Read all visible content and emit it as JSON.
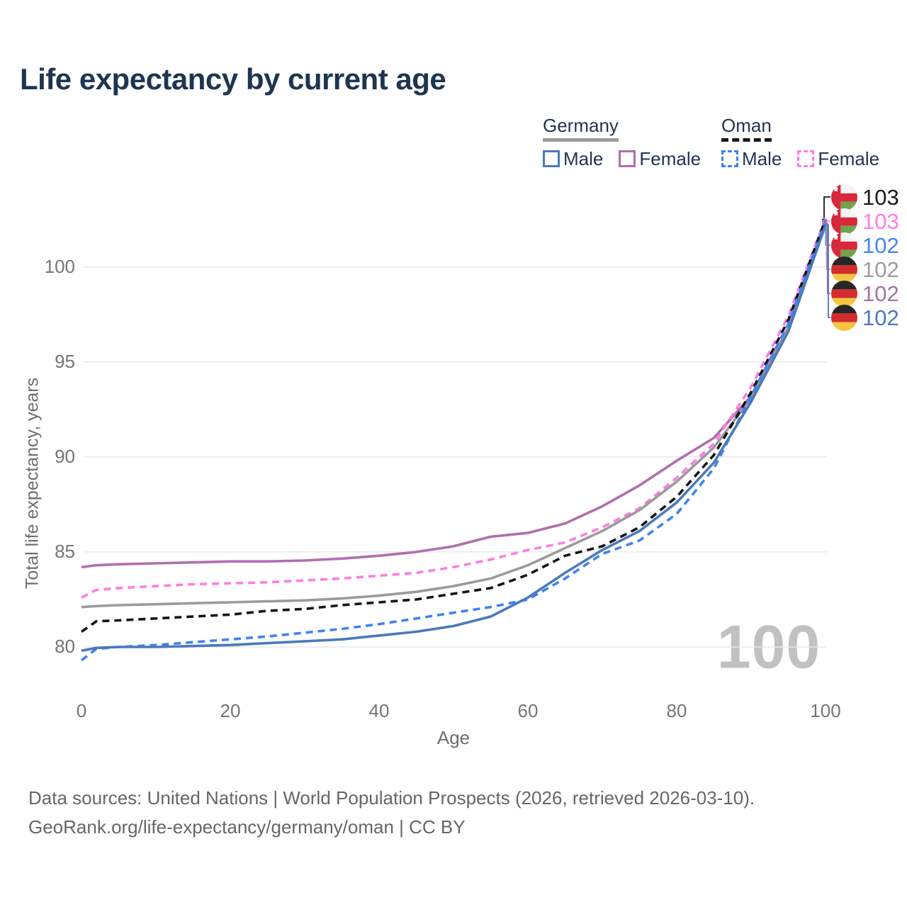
{
  "title": "Life expectancy by current age",
  "legend": {
    "groups": [
      {
        "name": "Germany",
        "underline_style": "solid",
        "underline_color": "#9c9c9c",
        "items": [
          {
            "label": "Male",
            "color": "#4b79bb",
            "dash": "solid"
          },
          {
            "label": "Female",
            "color": "#b06fae",
            "dash": "solid"
          }
        ]
      },
      {
        "name": "Oman",
        "underline_style": "dashed",
        "underline_color": "#1a1a1a",
        "items": [
          {
            "label": "Male",
            "color": "#3f82f2",
            "dash": "dashed"
          },
          {
            "label": "Female",
            "color": "#ff7de1",
            "dash": "dashed"
          }
        ]
      }
    ]
  },
  "axes": {
    "y_title": "Total life expectancy, years",
    "x_title": "Age",
    "y_ticks": [
      80,
      85,
      90,
      95,
      100
    ],
    "x_ticks": [
      0,
      20,
      40,
      60,
      80,
      100
    ],
    "grid_color": "#e9e9e9"
  },
  "chart_data": {
    "type": "line",
    "title": "Life expectancy by current age",
    "xlabel": "Age",
    "ylabel": "Total life expectancy, years",
    "xlim": [
      0,
      100
    ],
    "ylim": [
      78.5,
      103.5
    ],
    "grid": "horizontal",
    "x": [
      0,
      2,
      5,
      10,
      15,
      20,
      25,
      30,
      35,
      40,
      45,
      50,
      55,
      60,
      65,
      70,
      75,
      80,
      85,
      90,
      95,
      100
    ],
    "series": [
      {
        "name": "Germany Female",
        "color": "#b06fae",
        "dash": "solid",
        "values": [
          84.2,
          84.3,
          84.35,
          84.4,
          84.45,
          84.5,
          84.5,
          84.55,
          84.65,
          84.8,
          85.0,
          85.3,
          85.8,
          86.0,
          86.5,
          87.4,
          88.5,
          89.8,
          91.0,
          93.2,
          96.8,
          102.3
        ]
      },
      {
        "name": "Oman Female",
        "color": "#ff7de1",
        "dash": "dashed",
        "values": [
          82.6,
          83.0,
          83.1,
          83.2,
          83.3,
          83.35,
          83.4,
          83.5,
          83.6,
          83.75,
          83.9,
          84.2,
          84.6,
          85.1,
          85.5,
          86.3,
          87.3,
          88.9,
          90.7,
          93.7,
          97.4,
          102.55
        ]
      },
      {
        "name": "Germany Total",
        "color": "#9b9b9b",
        "dash": "solid",
        "values": [
          82.1,
          82.15,
          82.2,
          82.25,
          82.3,
          82.35,
          82.4,
          82.45,
          82.55,
          82.7,
          82.9,
          83.2,
          83.6,
          84.3,
          85.2,
          86.1,
          87.2,
          88.7,
          90.5,
          93.1,
          96.7,
          102.3
        ]
      },
      {
        "name": "Oman Total",
        "color": "#151515",
        "dash": "dashed",
        "values": [
          80.8,
          81.35,
          81.4,
          81.5,
          81.6,
          81.7,
          81.9,
          82.0,
          82.2,
          82.35,
          82.5,
          82.8,
          83.1,
          83.8,
          84.8,
          85.3,
          86.3,
          87.9,
          90.1,
          93.4,
          97.2,
          102.5
        ]
      },
      {
        "name": "Oman Male",
        "color": "#3f82f2",
        "dash": "dashed",
        "values": [
          79.3,
          79.9,
          80.0,
          80.1,
          80.25,
          80.4,
          80.55,
          80.75,
          80.95,
          81.2,
          81.5,
          81.8,
          82.1,
          82.5,
          83.6,
          84.9,
          85.6,
          87.0,
          89.4,
          93.2,
          97.0,
          102.4
        ]
      },
      {
        "name": "Germany Male",
        "color": "#4b79bb",
        "dash": "solid",
        "values": [
          79.8,
          79.95,
          80.0,
          80.0,
          80.05,
          80.1,
          80.2,
          80.3,
          80.4,
          80.6,
          80.8,
          81.1,
          81.6,
          82.6,
          83.9,
          85.1,
          86.1,
          87.6,
          89.7,
          92.9,
          96.6,
          102.2
        ]
      }
    ]
  },
  "end_labels": [
    {
      "value": "103",
      "color": "#1a1a1a",
      "flag": "oman",
      "series_index": 3
    },
    {
      "value": "103",
      "color": "#ff7de1",
      "flag": "oman",
      "series_index": 1
    },
    {
      "value": "102",
      "color": "#4285f4",
      "flag": "oman",
      "series_index": 4
    },
    {
      "value": "102",
      "color": "#9e9e9e",
      "flag": "germany",
      "series_index": 2
    },
    {
      "value": "102",
      "color": "#a76fa9",
      "flag": "germany",
      "series_index": 0
    },
    {
      "value": "102",
      "color": "#4b79bb",
      "flag": "germany",
      "series_index": 5
    }
  ],
  "flag_colors": {
    "oman": {
      "white": "#f4f4f4",
      "red": "#d7293b",
      "green": "#6fa34d"
    },
    "germany": {
      "black": "#262626",
      "red": "#d32b2e",
      "gold": "#f5c542"
    }
  },
  "watermark": "100",
  "footer": {
    "line1": "Data sources: United Nations | World Population Prospects (2026, retrieved 2026-03-10).",
    "line2": "GeoRank.org/life-expectancy/germany/oman | CC BY"
  }
}
